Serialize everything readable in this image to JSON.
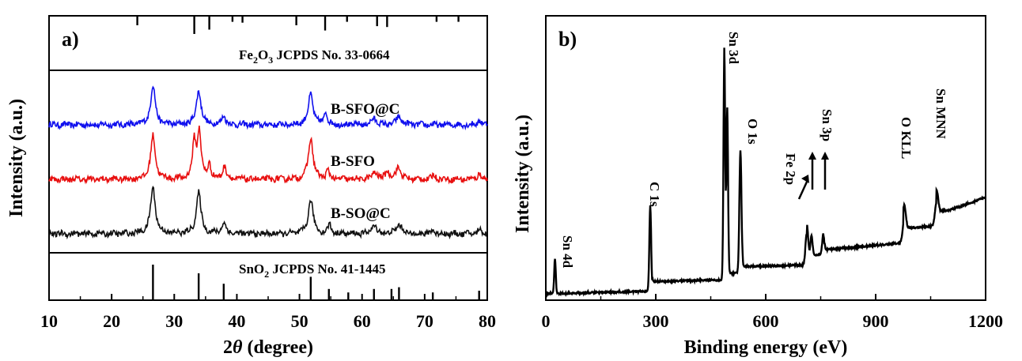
{
  "chart_data": [
    {
      "type": "line",
      "panel_label": "a)",
      "xlabel_pre": "2",
      "xlabel_theta": "θ",
      "xlabel_post": " (degree)",
      "ylabel": "Intensity (a.u.)",
      "xlim": [
        10,
        80
      ],
      "xticks": [
        "10",
        "20",
        "30",
        "40",
        "50",
        "60",
        "70",
        "80"
      ],
      "reference_top": {
        "label_pre": "Fe",
        "label_sub1": "2",
        "label_mid": "O",
        "label_sub2": "3",
        "label_post": " JCPDS No. 33-0664",
        "peaks": [
          24.1,
          33.2,
          35.6,
          39.3,
          40.9,
          49.5,
          54.1,
          57.6,
          62.4,
          64.0,
          71.9,
          75.4
        ],
        "heights": [
          0.5,
          1.0,
          0.75,
          0.3,
          0.35,
          0.5,
          0.8,
          0.3,
          0.55,
          0.6,
          0.3,
          0.3
        ]
      },
      "reference_bottom": {
        "label_pre": "SnO",
        "label_sub": "2",
        "label_post": " JCPDS No. 41-1445",
        "peaks": [
          26.6,
          33.9,
          37.9,
          51.8,
          54.7,
          57.8,
          61.9,
          64.7,
          65.9,
          71.3,
          78.7
        ],
        "heights": [
          1.0,
          0.75,
          0.45,
          0.65,
          0.3,
          0.2,
          0.3,
          0.3,
          0.35,
          0.2,
          0.25
        ]
      },
      "series": [
        {
          "name": "B-SFO@C",
          "color": "#1010ee",
          "peaks": [
            [
              26.6,
              0.9,
              0.8
            ],
            [
              33.9,
              0.8,
              0.8
            ],
            [
              37.9,
              0.22,
              0.6
            ],
            [
              51.8,
              0.72,
              0.8
            ],
            [
              54.2,
              0.3,
              0.5
            ],
            [
              61.9,
              0.15,
              0.8
            ],
            [
              65.9,
              0.18,
              0.9
            ],
            [
              78.8,
              0.1,
              0.6
            ]
          ]
        },
        {
          "name": "B-SFO",
          "color": "#e81010",
          "peaks": [
            [
              26.6,
              1.0,
              0.8
            ],
            [
              33.2,
              0.85,
              0.6
            ],
            [
              34.0,
              1.1,
              0.6
            ],
            [
              35.6,
              0.35,
              0.5
            ],
            [
              38.0,
              0.3,
              0.6
            ],
            [
              51.8,
              0.95,
              0.8
            ],
            [
              54.5,
              0.2,
              0.5
            ],
            [
              62.0,
              0.18,
              0.7
            ],
            [
              64.0,
              0.2,
              0.6
            ],
            [
              65.8,
              0.28,
              0.8
            ],
            [
              71.5,
              0.1,
              0.6
            ],
            [
              78.7,
              0.12,
              0.6
            ]
          ]
        },
        {
          "name": "B-SO@C",
          "color": "#111111",
          "peaks": [
            [
              26.6,
              1.05,
              0.85
            ],
            [
              33.9,
              0.95,
              0.8
            ],
            [
              37.9,
              0.25,
              0.7
            ],
            [
              51.8,
              0.8,
              0.8
            ],
            [
              54.8,
              0.2,
              0.6
            ],
            [
              61.9,
              0.2,
              0.8
            ],
            [
              65.9,
              0.22,
              0.9
            ],
            [
              71.3,
              0.08,
              0.6
            ],
            [
              78.7,
              0.1,
              0.6
            ]
          ]
        }
      ]
    },
    {
      "type": "line",
      "panel_label": "b)",
      "xlabel": "Binding energy (eV)",
      "ylabel": "Intensity (a.u.)",
      "xlim": [
        0,
        1200
      ],
      "xticks": [
        "0",
        "300",
        "600",
        "900",
        "1200"
      ],
      "color": "#000000",
      "annotations": [
        {
          "text": "Sn 4d",
          "x": 25
        },
        {
          "text": "C 1s",
          "x": 285
        },
        {
          "text": "Sn 3d",
          "x": 487
        },
        {
          "text": "O 1s",
          "x": 531
        },
        {
          "text": "Fe 2p",
          "x": 712
        },
        {
          "text": "Sn 3p",
          "x": 730
        },
        {
          "text": "O KLL",
          "x": 978
        },
        {
          "text": "Sn MNN",
          "x": 1066
        }
      ]
    }
  ]
}
